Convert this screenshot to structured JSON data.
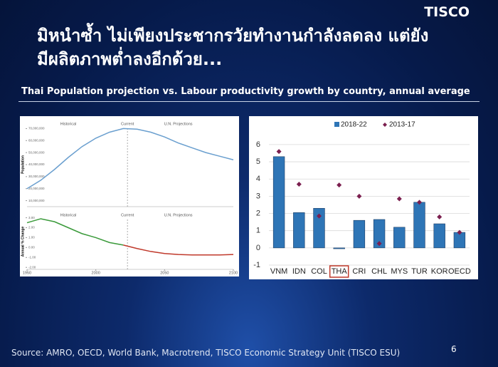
{
  "header": {
    "logo": "TISCO",
    "title": [
      "มิหนำซ้ำ ไม่เพียงประชากรวัยทำงานกำลังลดลง แต่ยัง",
      "มีผลิตภาพต่ำลงอีกด้วย..."
    ],
    "subtitle": "Thai Population projection vs. Labour productivity growth by country, annual average"
  },
  "chart_data": [
    {
      "type": "line",
      "y_label": "Population",
      "x": [
        1950,
        1960,
        1970,
        1980,
        1990,
        2000,
        2010,
        2020,
        2030,
        2040,
        2050,
        2060,
        2070,
        2080,
        2090,
        2100
      ],
      "series": [
        {
          "color": "#6a9fcf",
          "values": [
            20000000,
            27000000,
            36000000,
            46000000,
            55000000,
            62000000,
            67000000,
            70000000,
            69500000,
            67000000,
            63000000,
            58000000,
            54000000,
            50000000,
            47000000,
            44000000
          ]
        }
      ],
      "xlim": [
        1950,
        2100
      ],
      "ylim": [
        5000000,
        75000000
      ],
      "yticks": [
        {
          "value": 10000000,
          "label": "10,000,000"
        },
        {
          "value": 20000000,
          "label": "20,000,000"
        },
        {
          "value": 30000000,
          "label": "30,000,000"
        },
        {
          "value": 40000000,
          "label": "40,000,000"
        },
        {
          "value": 50000000,
          "label": "50,000,000"
        },
        {
          "value": 60000000,
          "label": "60,000,000"
        },
        {
          "value": 70000000,
          "label": "70,000,000"
        }
      ],
      "vlines": [
        2023
      ],
      "annotations": [
        {
          "text": "Historical",
          "x": 1980
        },
        {
          "text": "Current",
          "x": 2023
        },
        {
          "text": "U.N. Projections",
          "x": 2060
        }
      ]
    },
    {
      "type": "line",
      "y_label": "Annual % Change",
      "x": [
        1950,
        1960,
        1970,
        1980,
        1990,
        2000,
        2010,
        2020,
        2030,
        2040,
        2050,
        2060,
        2070,
        2080,
        2090,
        2100
      ],
      "series": [
        {
          "color": "#3a9a3a",
          "values": [
            2.5,
            2.9,
            2.6,
            2.0,
            1.4,
            1.0,
            0.5,
            0.25,
            null,
            null,
            null,
            null,
            null,
            null,
            null,
            null
          ]
        },
        {
          "color": "#c0392b",
          "values": [
            null,
            null,
            null,
            null,
            null,
            null,
            null,
            0.25,
            -0.1,
            -0.4,
            -0.6,
            -0.7,
            -0.75,
            -0.75,
            -0.75,
            -0.7
          ]
        }
      ],
      "xlim": [
        1950,
        2100
      ],
      "ylim": [
        -2.2,
        3.4
      ],
      "xticks": [
        1950,
        2000,
        2050,
        2100
      ],
      "yticks": [
        {
          "value": 3,
          "label": "3.00"
        },
        {
          "value": 2,
          "label": "2.00"
        },
        {
          "value": 1,
          "label": "1.00"
        },
        {
          "value": 0,
          "label": "0.00"
        },
        {
          "value": -1,
          "label": "-1.00"
        },
        {
          "value": -2,
          "label": "-2.00"
        }
      ],
      "vlines": [
        2023
      ],
      "annotations": [
        {
          "text": "Historical",
          "x": 1980
        },
        {
          "text": "Current",
          "x": 2023
        },
        {
          "text": "U.N. Projections",
          "x": 2060
        }
      ]
    },
    {
      "type": "bar",
      "categories": [
        "VNM",
        "IDN",
        "COL",
        "THA",
        "CRI",
        "CHL",
        "MYS",
        "TUR",
        "KOR",
        "OECD"
      ],
      "series": [
        {
          "name": "2018-22",
          "color": "#2e75b6",
          "values": [
            5.3,
            2.05,
            2.3,
            -0.05,
            1.6,
            1.65,
            1.2,
            2.65,
            1.4,
            0.9
          ]
        },
        {
          "name": "2013-17",
          "color": "#7b1f4f",
          "marker": "diamond",
          "values": [
            5.6,
            3.7,
            1.85,
            3.65,
            3.0,
            0.25,
            2.85,
            2.65,
            1.8,
            0.9
          ]
        }
      ],
      "ylim": [
        -1,
        6.7
      ],
      "yticks": [
        -1,
        0,
        1,
        2,
        3,
        4,
        5,
        6
      ],
      "grid": true,
      "highlight": 3
    }
  ],
  "footer": {
    "source": "Source: AMRO, OECD, World Bank, Macrotrend, TISCO Economic Strategy Unit (TISCO ESU)",
    "page": "6"
  }
}
